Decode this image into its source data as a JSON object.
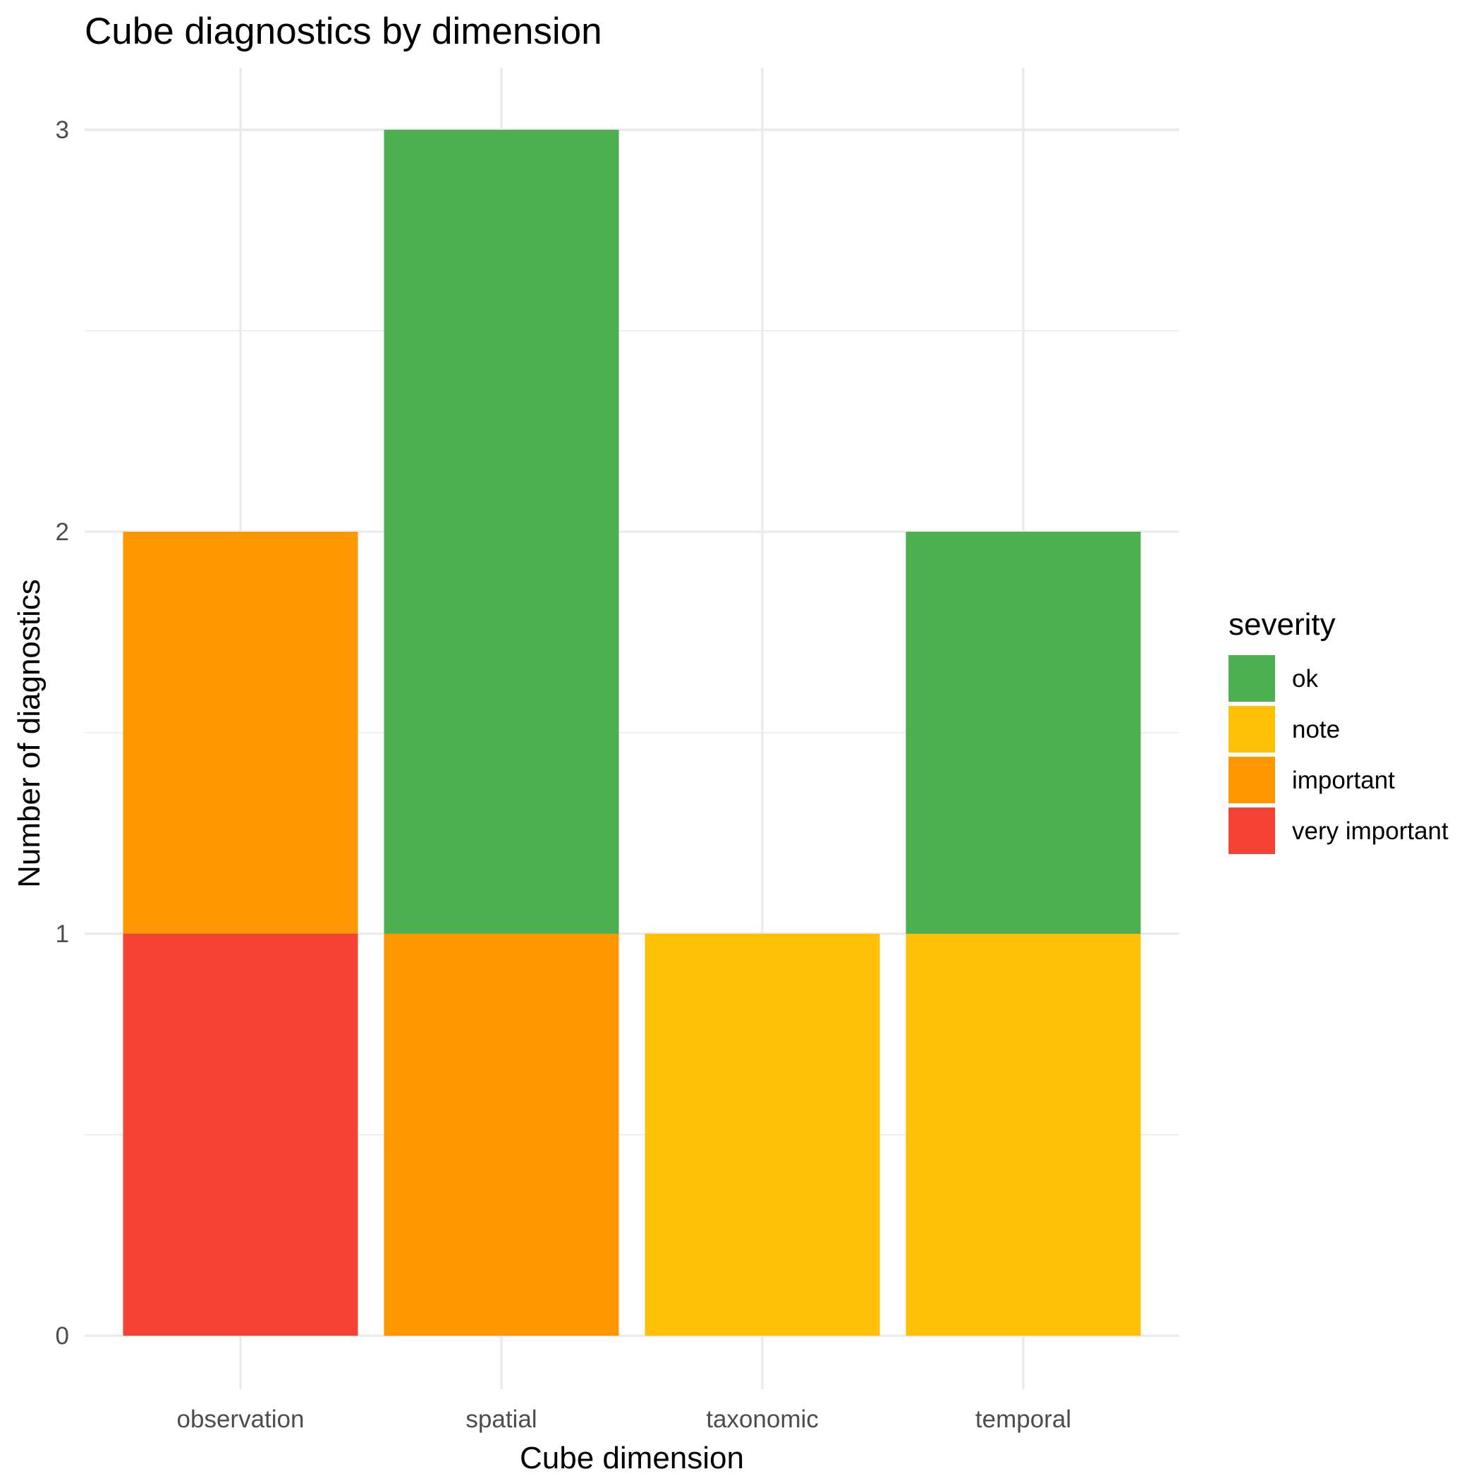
{
  "chart_data": {
    "type": "bar",
    "stacked": true,
    "title": "Cube diagnostics by dimension",
    "xlabel": "Cube dimension",
    "ylabel": "Number of diagnostics",
    "categories": [
      "observation",
      "spatial",
      "taxonomic",
      "temporal"
    ],
    "ylim": [
      0,
      3
    ],
    "yticks": [
      "0",
      "1",
      "2",
      "3"
    ],
    "grid": true,
    "legend": {
      "title": "severity",
      "position": "right"
    },
    "series": [
      {
        "name": "ok",
        "color": "#4CAF50",
        "values": [
          0,
          2,
          0,
          1
        ]
      },
      {
        "name": "note",
        "color": "#FFC107",
        "values": [
          0,
          0,
          1,
          1
        ]
      },
      {
        "name": "important",
        "color": "#FF9800",
        "values": [
          1,
          1,
          0,
          0
        ]
      },
      {
        "name": "very important",
        "color": "#F44336",
        "values": [
          1,
          0,
          0,
          0
        ]
      }
    ]
  }
}
